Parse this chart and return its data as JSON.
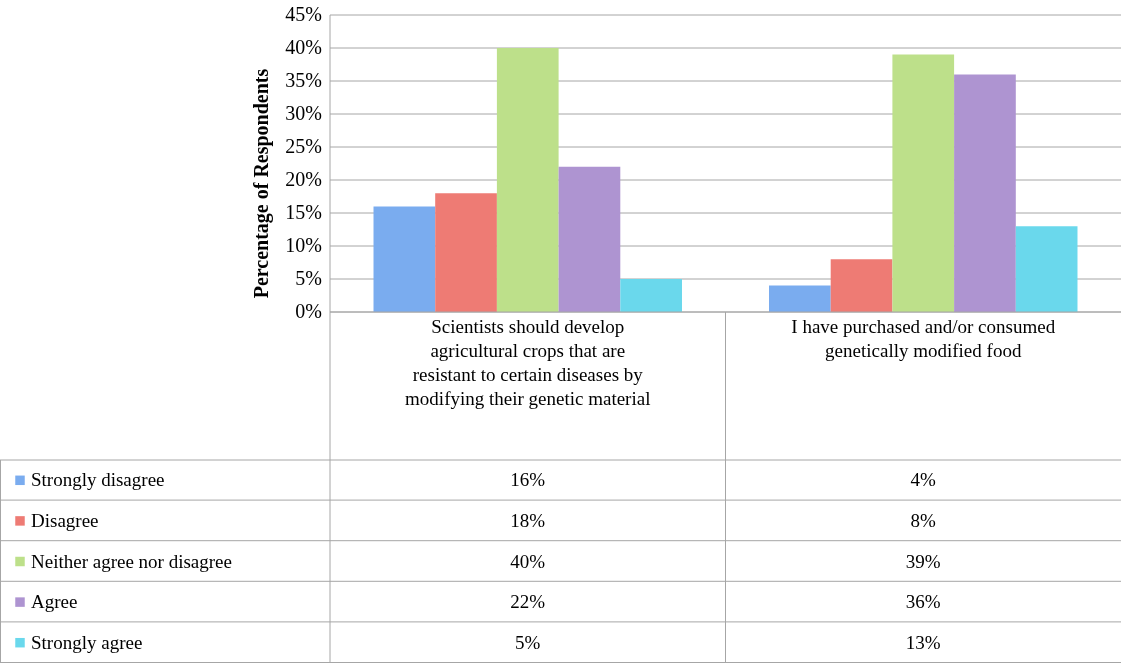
{
  "chart_data": {
    "type": "bar",
    "ylabel": "Percentage of Respondents",
    "categories": [
      "Scientists should develop agricultural crops that are resistant to certain diseases by modifying their genetic material",
      "I have purchased and/or consumed genetically modified food"
    ],
    "series": [
      {
        "name": "Strongly disagree",
        "color": "#7aacef",
        "values": [
          16,
          4
        ],
        "value_labels": [
          "16%",
          "4%"
        ]
      },
      {
        "name": "Disagree",
        "color": "#ee7b74",
        "values": [
          18,
          8
        ],
        "value_labels": [
          "18%",
          "8%"
        ]
      },
      {
        "name": "Neither agree nor disagree",
        "color": "#bde08a",
        "values": [
          40,
          39
        ],
        "value_labels": [
          "40%",
          "39%"
        ]
      },
      {
        "name": "Agree",
        "color": "#ae94d1",
        "values": [
          22,
          36
        ],
        "value_labels": [
          "22%",
          "36%"
        ]
      },
      {
        "name": "Strongly agree",
        "color": "#6ad8ec",
        "values": [
          5,
          13
        ],
        "value_labels": [
          "5%",
          "13%"
        ]
      }
    ],
    "ylim": [
      0,
      45
    ],
    "yticks": [
      {
        "value": 0,
        "label": "0%"
      },
      {
        "value": 5,
        "label": "5%"
      },
      {
        "value": 10,
        "label": "10%"
      },
      {
        "value": 15,
        "label": "15%"
      },
      {
        "value": 20,
        "label": "20%"
      },
      {
        "value": 25,
        "label": "25%"
      },
      {
        "value": 30,
        "label": "30%"
      },
      {
        "value": 35,
        "label": "35%"
      },
      {
        "value": 40,
        "label": "40%"
      },
      {
        "value": 45,
        "label": "45%"
      }
    ],
    "grid": "y",
    "legend": "bottom"
  }
}
